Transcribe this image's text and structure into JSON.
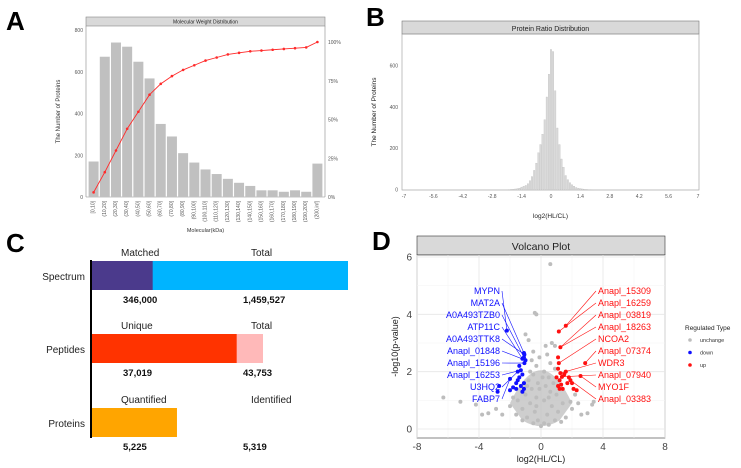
{
  "panels": {
    "a": "A",
    "b": "B",
    "c": "C",
    "d": "D"
  },
  "chart_data": [
    {
      "type": "bar",
      "title": "Molecular Weight Distribution",
      "xlabel": "Molecular(kDa)",
      "ylabel": "The Number of Proteins",
      "ylim": [
        0,
        800
      ],
      "yticks": [
        "0",
        "200",
        "400",
        "600",
        "800"
      ],
      "y2ticks": [
        "0%",
        "25%",
        "50%",
        "75%",
        "100%"
      ],
      "bar_color": "#c0c0c0",
      "line_color": "#ff2a2a",
      "categories": [
        "[0,10]",
        "(10,20]",
        "(20,30]",
        "(30,40]",
        "(40,50]",
        "(50,60]",
        "(60,70]",
        "(70,80]",
        "(80,90]",
        "(90,100]",
        "(100,110]",
        "(110,120]",
        "(120,130]",
        "(130,140]",
        "(140,150]",
        "(150,160]",
        "(160,170]",
        "(170,180]",
        "(180,190]",
        "(190,200]",
        "(200,inf]"
      ],
      "values": [
        170,
        672,
        740,
        720,
        648,
        568,
        350,
        290,
        210,
        165,
        132,
        110,
        87,
        68,
        53,
        32,
        32,
        25,
        32,
        25,
        160
      ],
      "cumulative_percent": [
        3,
        16,
        30,
        44,
        55,
        66,
        73,
        78,
        82,
        85,
        88,
        90,
        92,
        93,
        94,
        94.5,
        95,
        95.5,
        96,
        96.5,
        100
      ]
    },
    {
      "type": "bar",
      "title": "Protein Ratio Distribution",
      "xlabel": "log2(HL/CL)",
      "ylabel": "The Number of Proteins",
      "xlim": [
        -7,
        7
      ],
      "ylim": [
        0,
        740
      ],
      "xticks": [
        "-7",
        "-5.6",
        "-4.2",
        "-2.8",
        "-1.4",
        "0",
        "1.4",
        "2.8",
        "4.2",
        "5.6",
        "7"
      ],
      "yticks": [
        "0",
        "200",
        "400",
        "600"
      ],
      "bar_color": "#d9d9d9",
      "bin_centers": [
        -2.0,
        -1.9,
        -1.8,
        -1.7,
        -1.6,
        -1.5,
        -1.4,
        -1.3,
        -1.2,
        -1.1,
        -1.0,
        -0.9,
        -0.8,
        -0.7,
        -0.6,
        -0.5,
        -0.4,
        -0.3,
        -0.2,
        -0.1,
        0.0,
        0.1,
        0.2,
        0.3,
        0.4,
        0.5,
        0.6,
        0.7,
        0.8,
        0.9,
        1.0,
        1.1,
        1.2,
        1.3,
        1.4,
        1.5,
        1.6,
        1.7,
        1.8,
        1.9,
        2.0
      ],
      "values": [
        2,
        3,
        4,
        5,
        7,
        9,
        14,
        18,
        22,
        30,
        45,
        65,
        95,
        130,
        180,
        220,
        270,
        340,
        450,
        560,
        680,
        670,
        480,
        300,
        220,
        150,
        110,
        70,
        50,
        35,
        25,
        18,
        12,
        9,
        7,
        5,
        4,
        3,
        2,
        2,
        1
      ]
    },
    {
      "type": "bar",
      "orientation": "horizontal",
      "rows": [
        {
          "label": "Spectrum",
          "left_label": "Matched",
          "right_label": "Total",
          "left_value": "346,000",
          "right_value": "1,459,527",
          "left": 346000,
          "total": 1459527,
          "left_color": "#4b3a8c",
          "right_color": "#00b4ff"
        },
        {
          "label": "Peptides",
          "left_label": "Unique",
          "right_label": "Total",
          "left_value": "37,019",
          "right_value": "43,753",
          "left": 37019,
          "total": 43753,
          "left_color": "#ff3300",
          "right_color": "#ffb9b9"
        },
        {
          "label": "Proteins",
          "left_label": "Quantified",
          "right_label": "Identified",
          "left_value": "5,225",
          "right_value": "5,319",
          "left": 5225,
          "total": 5319,
          "left_color": "#ffa500",
          "right_color": "#ffffff"
        }
      ]
    },
    {
      "type": "scatter",
      "title": "Volcano Plot",
      "xlabel": "log2(HL/CL)",
      "ylabel": "-log10(p-value)",
      "xlim": [
        -8,
        8
      ],
      "ylim": [
        -0.3,
        6.7
      ],
      "xticks": [
        "-8",
        "-4",
        "0",
        "4",
        "8"
      ],
      "yticks": [
        "0",
        "2",
        "4",
        "6"
      ],
      "grid": true,
      "legend": {
        "title": "Regulated Type",
        "placement": "right",
        "entries": [
          {
            "name": "unchange",
            "color": "#bdbdbd"
          },
          {
            "name": "down",
            "color": "#1010ff"
          },
          {
            "name": "up",
            "color": "#ff1010"
          }
        ]
      },
      "unchange": [
        [
          0.6,
          5.75
        ],
        [
          -0.4,
          4.05
        ],
        [
          -0.3,
          4.0
        ],
        [
          -1.0,
          3.3
        ],
        [
          -0.8,
          3.1
        ],
        [
          0.7,
          3.0
        ],
        [
          0.9,
          2.9
        ],
        [
          -0.5,
          2.7
        ],
        [
          0.4,
          2.6
        ],
        [
          -0.6,
          2.4
        ],
        [
          0.6,
          2.3
        ],
        [
          -0.3,
          2.2
        ],
        [
          0.2,
          2.0
        ],
        [
          -0.5,
          1.9
        ],
        [
          0.5,
          1.8
        ],
        [
          -0.8,
          1.7
        ],
        [
          0.8,
          1.6
        ],
        [
          -0.2,
          1.6
        ],
        [
          0.3,
          1.5
        ],
        [
          -0.6,
          1.4
        ],
        [
          0.6,
          1.3
        ],
        [
          -1.0,
          1.2
        ],
        [
          1.0,
          1.2
        ],
        [
          -0.3,
          1.1
        ],
        [
          0.2,
          1.0
        ],
        [
          -1.5,
          1.0
        ],
        [
          1.4,
          0.9
        ],
        [
          -0.7,
          0.9
        ],
        [
          0.7,
          0.8
        ],
        [
          -2.0,
          0.8
        ],
        [
          2.0,
          0.7
        ],
        [
          -1.2,
          0.7
        ],
        [
          1.1,
          0.6
        ],
        [
          -0.4,
          0.6
        ],
        [
          0.4,
          0.5
        ],
        [
          -2.5,
          0.5
        ],
        [
          2.6,
          0.5
        ],
        [
          -1.6,
          0.5
        ],
        [
          1.6,
          0.4
        ],
        [
          -0.9,
          0.4
        ],
        [
          0.9,
          0.3
        ],
        [
          -0.2,
          0.3
        ],
        [
          0.2,
          0.2
        ],
        [
          -0.5,
          0.2
        ],
        [
          0.5,
          0.15
        ],
        [
          0,
          0.1
        ],
        [
          -1.2,
          0.3
        ],
        [
          1.3,
          0.25
        ],
        [
          -6.3,
          1.1
        ],
        [
          -5.2,
          0.95
        ],
        [
          -4.2,
          0.85
        ],
        [
          -3.8,
          0.5
        ],
        [
          -3.4,
          0.55
        ],
        [
          3.4,
          0.95
        ],
        [
          3.3,
          0.85
        ],
        [
          3.0,
          0.55
        ],
        [
          2.4,
          0.9
        ],
        [
          -2.9,
          0.7
        ],
        [
          -0.1,
          1.4
        ],
        [
          0.1,
          1.8
        ],
        [
          -0.1,
          2.5
        ],
        [
          0.3,
          2.9
        ],
        [
          -0.7,
          2.0
        ],
        [
          0.9,
          2.1
        ],
        [
          -0.9,
          1.5
        ],
        [
          0.5,
          1.1
        ],
        [
          -0.3,
          0.8
        ],
        [
          1.9,
          0.95
        ],
        [
          -1.8,
          1.1
        ],
        [
          2.2,
          1.2
        ]
      ],
      "down": [
        [
          -2.2,
          3.43
        ],
        [
          -1.1,
          2.65
        ],
        [
          -1.07,
          2.6
        ],
        [
          -1.1,
          2.5
        ],
        [
          -1.2,
          2.45
        ],
        [
          -1.0,
          2.4
        ],
        [
          -1.07,
          2.3
        ],
        [
          -1.3,
          2.05
        ],
        [
          -1.5,
          2.0
        ],
        [
          -2.0,
          1.75
        ],
        [
          -1.2,
          1.9
        ],
        [
          -1.4,
          1.8
        ],
        [
          -1.6,
          1.6
        ],
        [
          -1.3,
          1.5
        ],
        [
          -1.1,
          1.4
        ],
        [
          -1.2,
          1.3
        ],
        [
          -1.8,
          1.45
        ],
        [
          -2.0,
          1.35
        ],
        [
          -2.7,
          1.5
        ],
        [
          -2.8,
          1.3
        ],
        [
          -1.5,
          1.7
        ],
        [
          -1.1,
          1.6
        ],
        [
          -1.4,
          2.2
        ],
        [
          -1.6,
          1.4
        ]
      ],
      "up": [
        [
          1.6,
          3.6
        ],
        [
          1.15,
          3.4
        ],
        [
          1.25,
          2.85
        ],
        [
          2.85,
          2.3
        ],
        [
          1.15,
          2.3
        ],
        [
          1.25,
          1.95
        ],
        [
          1.35,
          1.82
        ],
        [
          2.55,
          1.85
        ],
        [
          1.9,
          1.7
        ],
        [
          1.1,
          2.1
        ],
        [
          1.5,
          1.9
        ],
        [
          1.2,
          1.7
        ],
        [
          1.7,
          1.6
        ],
        [
          1.1,
          1.5
        ],
        [
          1.4,
          1.4
        ],
        [
          2.1,
          1.4
        ],
        [
          1.2,
          1.4
        ],
        [
          1.8,
          1.8
        ],
        [
          2.0,
          1.6
        ],
        [
          1.0,
          1.8
        ],
        [
          1.6,
          2.0
        ],
        [
          1.3,
          1.55
        ],
        [
          2.3,
          1.35
        ],
        [
          1.1,
          2.5
        ]
      ],
      "labels": [
        {
          "text": "MYPN",
          "x": -2.2,
          "y": 3.43,
          "tx": -3.1,
          "ty": 3.6,
          "group": "down"
        },
        {
          "text": "MAT2A",
          "x": -1.1,
          "y": 2.65,
          "tx": -3.4,
          "ty": 3.15,
          "group": "down"
        },
        {
          "text": "A0A493TZB0",
          "x": -1.1,
          "y": 2.5,
          "tx": -6.3,
          "ty": 2.8,
          "group": "down"
        },
        {
          "text": "ATP11C",
          "x": -1.2,
          "y": 2.45,
          "tx": -3.5,
          "ty": 2.8,
          "group": "down"
        },
        {
          "text": "A0A493TTK8",
          "x": -1.07,
          "y": 2.6,
          "tx": -2.2,
          "ty": 2.8,
          "group": "down"
        },
        {
          "text": "Anapl_01848",
          "x": -1.0,
          "y": 2.4,
          "tx": -6.3,
          "ty": 2.45,
          "group": "down"
        },
        {
          "text": "Anapl_15196",
          "x": -1.07,
          "y": 2.3,
          "tx": -4.4,
          "ty": 2.45,
          "group": "down"
        },
        {
          "text": "Anapl_16253",
          "x": -1.3,
          "y": 2.05,
          "tx": -5.2,
          "ty": 2.0,
          "group": "down"
        },
        {
          "text": "U3HQ2",
          "x": -1.5,
          "y": 2.0,
          "tx": -2.7,
          "ty": 2.0,
          "group": "down"
        },
        {
          "text": "FABP7",
          "x": -2.0,
          "y": 1.75,
          "tx": -3.2,
          "ty": 1.7,
          "group": "down"
        },
        {
          "text": "Anapl_15309",
          "x": 1.6,
          "y": 3.6,
          "tx": 1.1,
          "ty": 3.75,
          "group": "up"
        },
        {
          "text": "Anapl_16259",
          "x": 1.15,
          "y": 3.4,
          "tx": -0.8,
          "ty": 3.25,
          "group": "up"
        },
        {
          "text": "Anapl_03819",
          "x": 1.25,
          "y": 2.85,
          "tx": 3.0,
          "ty": 3.25,
          "group": "up"
        },
        {
          "text": "Anapl_18263",
          "x": 1.25,
          "y": 2.85,
          "tx": 1.5,
          "ty": 2.85,
          "group": "up"
        },
        {
          "text": "NCOA2",
          "x": 1.15,
          "y": 2.3,
          "tx": 1.2,
          "ty": 2.45,
          "group": "up"
        },
        {
          "text": "Anapl_07374",
          "x": 2.85,
          "y": 2.3,
          "tx": 3.2,
          "ty": 2.45,
          "group": "up"
        },
        {
          "text": "WDR3",
          "x": 1.25,
          "y": 1.95,
          "tx": 1.5,
          "ty": 2.05,
          "group": "up"
        },
        {
          "text": "Anapl_07940",
          "x": 1.35,
          "y": 1.82,
          "tx": 3.3,
          "ty": 2.05,
          "group": "up"
        },
        {
          "text": "MYO1F",
          "x": 2.55,
          "y": 1.85,
          "tx": 5.6,
          "ty": 1.65,
          "group": "up"
        },
        {
          "text": "Anapl_03383",
          "x": 1.9,
          "y": 1.7,
          "tx": 2.3,
          "ty": 1.45,
          "group": "up"
        }
      ]
    }
  ]
}
